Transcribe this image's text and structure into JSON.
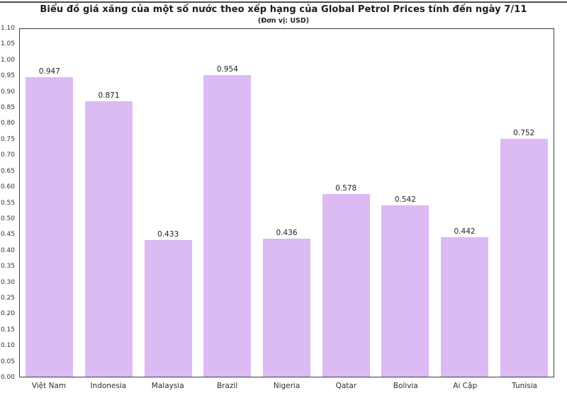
{
  "page": {
    "background": "#ffffff",
    "top_rule_color": "#4e4e4e"
  },
  "chart_data": {
    "type": "bar",
    "title": "Biểu đồ giá xăng của một số nước theo xếp hạng của Global Petrol Prices tính đến ngày 7/11",
    "subtitle": "(Đơn vị: USD)",
    "categories": [
      "Việt Nam",
      "Indonesia",
      "Malaysia",
      "Brazil",
      "Nigeria",
      "Qatar",
      "Bolivia",
      "Ai Cập",
      "Tunisia"
    ],
    "values": [
      0.947,
      0.871,
      0.433,
      0.954,
      0.436,
      0.578,
      0.542,
      0.442,
      0.752
    ],
    "value_labels": [
      "0.947",
      "0.871",
      "0.433",
      "0.954",
      "0.436",
      "0.578",
      "0.542",
      "0.442",
      "0.752"
    ],
    "y_ticks": [
      "0.00",
      "0.05",
      "0.10",
      "0.15",
      "0.20",
      "0.25",
      "0.30",
      "0.35",
      "0.40",
      "0.45",
      "0.50",
      "0.55",
      "0.60",
      "0.65",
      "0.70",
      "0.75",
      "0.80",
      "0.85",
      "0.90",
      "0.95",
      "1.00",
      "1.05",
      "1.10"
    ],
    "ylim": [
      0,
      1.1
    ],
    "y_tick_step": 0.05,
    "xlabel": "",
    "ylabel": "",
    "grid": false,
    "legend": "none",
    "bar_color": "#dcbaf3",
    "axis_color": "#3d3d3d",
    "text_color": "#222222"
  }
}
